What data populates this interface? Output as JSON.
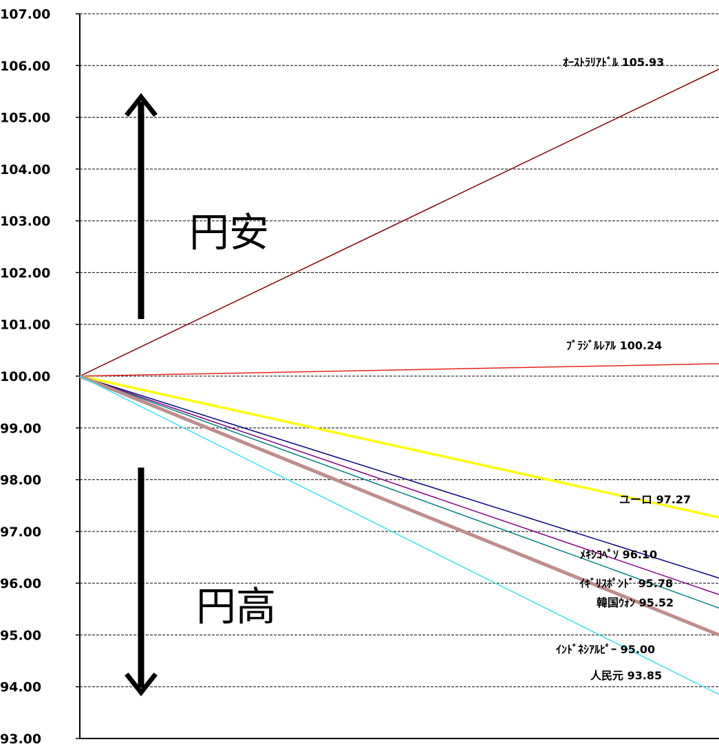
{
  "chart_data": {
    "type": "line",
    "title": "",
    "xlabel": "",
    "ylabel": "",
    "ylim": [
      93,
      107
    ],
    "grid": true,
    "y_ticks": [
      "107.00",
      "106.00",
      "105.00",
      "104.00",
      "103.00",
      "102.00",
      "101.00",
      "100.00",
      "99.00",
      "98.00",
      "97.00",
      "96.00",
      "95.00",
      "94.00",
      "93.00"
    ],
    "x": [
      0,
      1
    ],
    "series": [
      {
        "name": "オーストラリアドル",
        "values": [
          100.0,
          105.93
        ],
        "color": "#7f0000",
        "label_text": "ｵｰｽﾄﾗﾘｱﾄﾞﾙ 105.93"
      },
      {
        "name": "ブラジルレアル",
        "values": [
          100.0,
          100.24
        ],
        "color": "#e2231a",
        "label_text": "ﾌﾞﾗｼﾞﾙﾚｱﾙ  100.24"
      },
      {
        "name": "ユーロ",
        "values": [
          100.0,
          97.27
        ],
        "color": "#ffff00",
        "label_text": "ユーロ  97.27"
      },
      {
        "name": "メキシコペソ",
        "values": [
          100.0,
          96.1
        ],
        "color": "#000080",
        "label_text": "ﾒｷｼｺﾍﾟｿ 96.10"
      },
      {
        "name": "イギリスポンド",
        "values": [
          100.0,
          95.78
        ],
        "color": "#800080",
        "label_text": "ｲｷﾞﾘｽﾎﾟﾝﾄﾞ 95.78"
      },
      {
        "name": "韓国ウォン",
        "values": [
          100.0,
          95.52
        ],
        "color": "#008080",
        "label_text": "韓国ｳｫﾝ  95.52"
      },
      {
        "name": "インドネシアルピー",
        "values": [
          100.0,
          95.0
        ],
        "color": "#c08c8c",
        "label_text": "ｲﾝﾄﾞﾈｼｱﾙﾋﾟｰ  95.00"
      },
      {
        "name": "人民元",
        "values": [
          100.0,
          93.85
        ],
        "color": "#33e6f0",
        "label_text": "人民元  93.85"
      }
    ],
    "annotations": {
      "up": "円安",
      "down": "円高"
    }
  }
}
